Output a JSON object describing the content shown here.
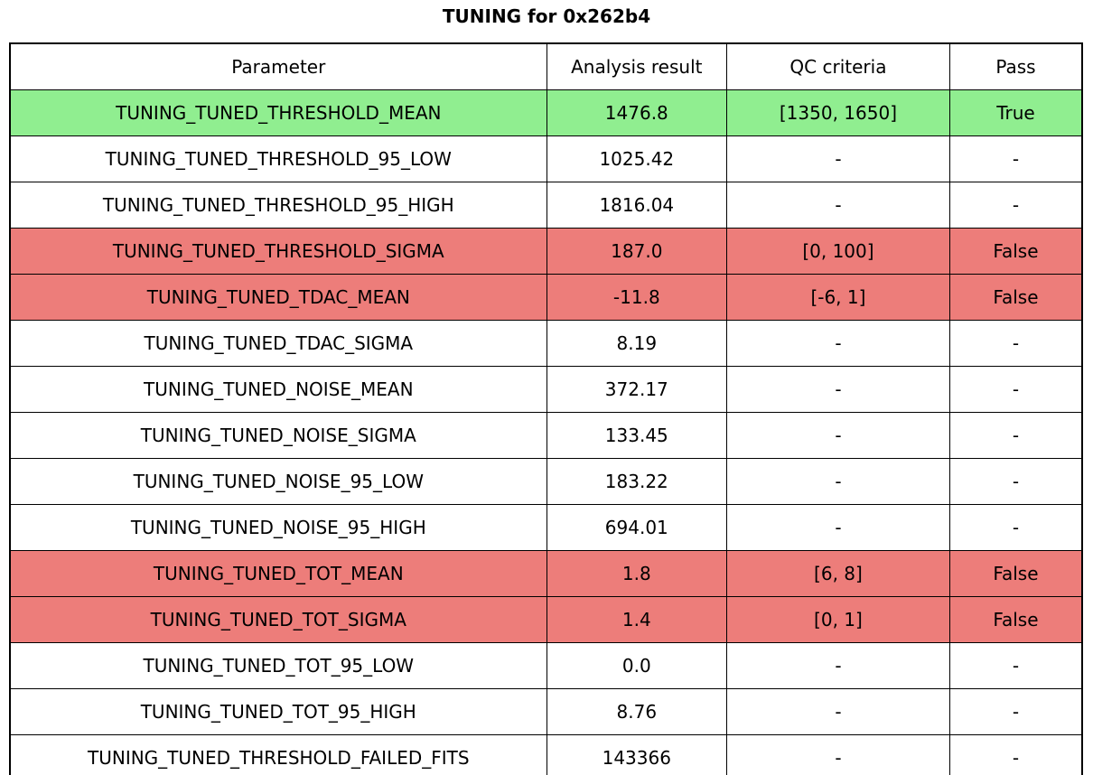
{
  "chart_data": {
    "type": "table",
    "title": "TUNING for 0x262b4",
    "columns": [
      "Parameter",
      "Analysis result",
      "QC criteria",
      "Pass"
    ],
    "rows": [
      [
        "TUNING_TUNED_THRESHOLD_MEAN",
        "1476.8",
        "[1350, 1650]",
        "True"
      ],
      [
        "TUNING_TUNED_THRESHOLD_95_LOW",
        "1025.42",
        "-",
        "-"
      ],
      [
        "TUNING_TUNED_THRESHOLD_95_HIGH",
        "1816.04",
        "-",
        "-"
      ],
      [
        "TUNING_TUNED_THRESHOLD_SIGMA",
        "187.0",
        "[0, 100]",
        "False"
      ],
      [
        "TUNING_TUNED_TDAC_MEAN",
        "-11.8",
        "[-6, 1]",
        "False"
      ],
      [
        "TUNING_TUNED_TDAC_SIGMA",
        "8.19",
        "-",
        "-"
      ],
      [
        "TUNING_TUNED_NOISE_MEAN",
        "372.17",
        "-",
        "-"
      ],
      [
        "TUNING_TUNED_NOISE_SIGMA",
        "133.45",
        "-",
        "-"
      ],
      [
        "TUNING_TUNED_NOISE_95_LOW",
        "183.22",
        "-",
        "-"
      ],
      [
        "TUNING_TUNED_NOISE_95_HIGH",
        "694.01",
        "-",
        "-"
      ],
      [
        "TUNING_TUNED_TOT_MEAN",
        "1.8",
        "[6, 8]",
        "False"
      ],
      [
        "TUNING_TUNED_TOT_SIGMA",
        "1.4",
        "[0, 1]",
        "False"
      ],
      [
        "TUNING_TUNED_TOT_95_LOW",
        "0.0",
        "-",
        "-"
      ],
      [
        "TUNING_TUNED_TOT_95_HIGH",
        "8.76",
        "-",
        "-"
      ],
      [
        "TUNING_TUNED_THRESHOLD_FAILED_FITS",
        "143366",
        "-",
        "-"
      ]
    ],
    "row_status": [
      "pass",
      "none",
      "none",
      "fail",
      "fail",
      "none",
      "none",
      "none",
      "none",
      "none",
      "fail",
      "fail",
      "none",
      "none",
      "none"
    ],
    "legend_position": "none",
    "grid": "full-cell-borders"
  },
  "colors": {
    "pass_row": "#90ee90",
    "fail_row": "#ed7d7a",
    "border": "#000000",
    "background": "#ffffff",
    "text": "#000000"
  }
}
